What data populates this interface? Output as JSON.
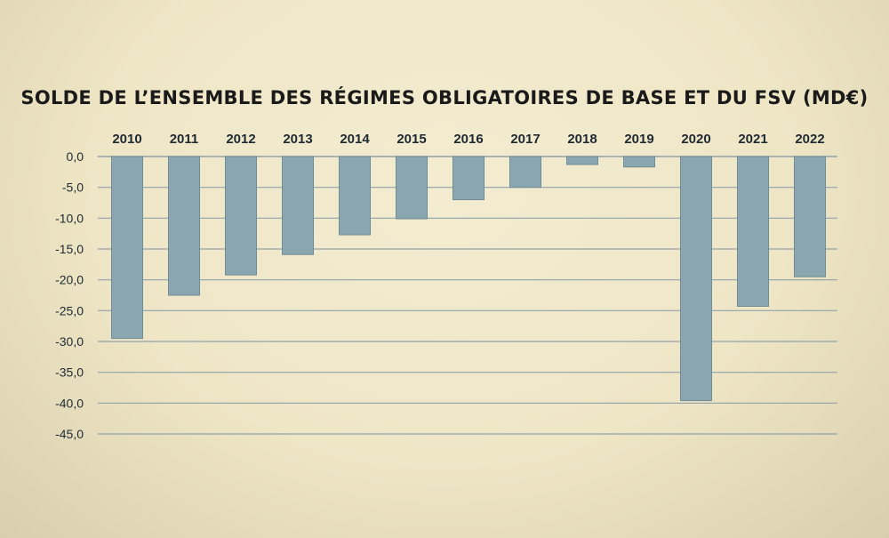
{
  "chart_data": {
    "type": "bar",
    "title": "SOLDE DE L’ENSEMBLE DES RÉGIMES OBLIGATOIRES DE BASE ET DU FSV (MD€)",
    "categories": [
      "2010",
      "2011",
      "2012",
      "2013",
      "2014",
      "2015",
      "2016",
      "2017",
      "2018",
      "2019",
      "2020",
      "2021",
      "2022"
    ],
    "values": [
      -29.5,
      -22.5,
      -19.2,
      -15.9,
      -12.7,
      -10.1,
      -7.0,
      -5.0,
      -1.3,
      -1.7,
      -39.6,
      -24.3,
      -19.5
    ],
    "y_ticks": [
      "0,0",
      "-5,0",
      "-10,0",
      "-15,0",
      "-20,0",
      "-25,0",
      "-30,0",
      "-35,0",
      "-40,0",
      "-45,0"
    ],
    "ylim": [
      -45,
      0
    ],
    "grid": true,
    "legend": "none",
    "category_axis_position": "top",
    "bar_color": "#8aa7b1",
    "grid_color": "#8fa2ac"
  }
}
